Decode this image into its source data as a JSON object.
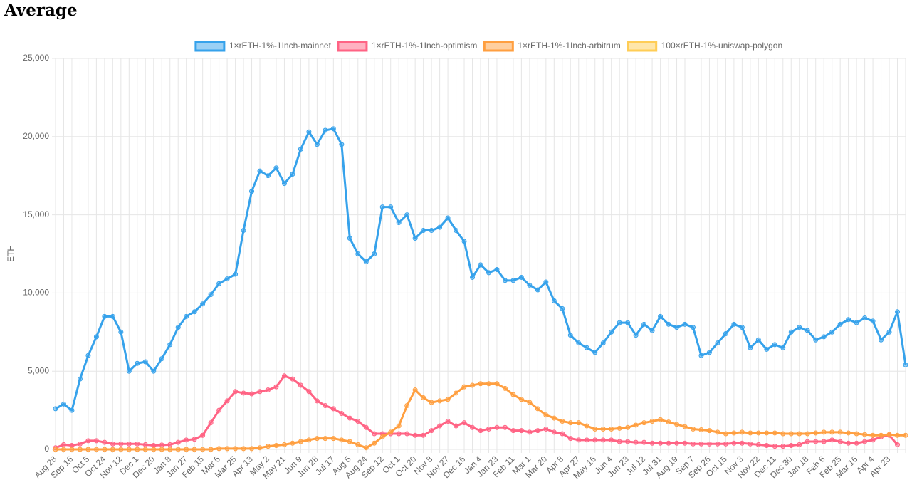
{
  "chart_data": {
    "type": "line",
    "title": "Average",
    "y_label": "ETH",
    "grid": true,
    "legend_position": "top",
    "categories": [
      "Aug 28",
      null,
      "Sep 16",
      null,
      "Oct 5",
      null,
      "Oct 24",
      null,
      "Nov 12",
      null,
      "Dec 1",
      null,
      "Dec 20",
      null,
      "Jan 8",
      null,
      "Jan 27",
      null,
      "Feb 15",
      null,
      "Mar 6",
      null,
      "Mar 25",
      null,
      "Apr 13",
      null,
      "May 2",
      null,
      "May 21",
      null,
      "Jun 9",
      null,
      "Jun 28",
      null,
      "Jul 17",
      null,
      "Aug 5",
      null,
      "Aug 24",
      null,
      "Sep 12",
      null,
      "Oct 1",
      null,
      "Oct 20",
      null,
      "Nov 8",
      null,
      "Nov 27",
      null,
      "Dec 16",
      null,
      "Jan 4",
      null,
      "Jan 23",
      null,
      "Feb 11",
      null,
      "Mar 1",
      null,
      "Mar 20",
      null,
      "Apr 8",
      null,
      "Apr 27",
      null,
      "May 16",
      null,
      "Jun 4",
      null,
      "Jun 23",
      null,
      "Jul 12",
      null,
      "Jul 31",
      null,
      "Aug 19",
      null,
      "Sep 7",
      null,
      "Sep 26",
      null,
      "Oct 15",
      null,
      "Nov 3",
      null,
      "Nov 22",
      null,
      "Dec 11",
      null,
      "Dec 30",
      null,
      "Jan 18",
      null,
      "Feb 6",
      null,
      "Feb 25",
      null,
      "Mar 16",
      null,
      "Apr 4",
      null,
      "Apr 23",
      null,
      null
    ],
    "ylim": [
      0,
      25000
    ],
    "yticks": [
      0,
      {
        "value": 5000,
        "label": "5,000"
      },
      {
        "value": 10000,
        "label": "10,000"
      },
      {
        "value": 15000,
        "label": "15,000"
      },
      {
        "value": 20000,
        "label": "20,000"
      },
      {
        "value": 25000,
        "label": "25,000"
      }
    ],
    "series": [
      {
        "name": "1×rETH-1%-1Inch-mainnet",
        "color": "#36a2eb",
        "values": [
          2600,
          2900,
          2500,
          4500,
          6000,
          7200,
          8500,
          8500,
          7500,
          5000,
          5500,
          5600,
          5000,
          5800,
          6700,
          7800,
          8500,
          8800,
          9300,
          9900,
          10600,
          10900,
          11200,
          14000,
          16500,
          17800,
          17500,
          18000,
          17000,
          17600,
          19200,
          20300,
          19500,
          20400,
          20500,
          19500,
          13500,
          12500,
          12000,
          12500,
          15500,
          15500,
          14500,
          15000,
          13500,
          14000,
          14000,
          14200,
          14800,
          14000,
          13300,
          11000,
          11800,
          11300,
          11500,
          10800,
          10800,
          11000,
          10500,
          10200,
          10700,
          9500,
          9000,
          7300,
          6800,
          6500,
          6200,
          6800,
          7500,
          8100,
          8100,
          7300,
          8000,
          7600,
          8500,
          8000,
          7800,
          8000,
          7800,
          6000,
          6200,
          6800,
          7400,
          8000,
          7800,
          6500,
          7000,
          6400,
          6700,
          6500,
          7500,
          7800,
          7600,
          7000,
          7200,
          7500,
          8000,
          8300,
          8100,
          8400,
          8200,
          7000,
          7500,
          8800,
          5400
        ]
      },
      {
        "name": "1×rETH-1%-1Inch-optimism",
        "color": "#ff6384",
        "values": [
          100,
          300,
          250,
          350,
          550,
          550,
          450,
          350,
          350,
          350,
          350,
          300,
          250,
          280,
          300,
          450,
          600,
          650,
          900,
          1700,
          2500,
          3100,
          3700,
          3600,
          3550,
          3700,
          3800,
          4000,
          4700,
          4500,
          4100,
          3700,
          3100,
          2800,
          2600,
          2300,
          2000,
          1800,
          1400,
          1000,
          1000,
          1000,
          1000,
          1000,
          900,
          900,
          1200,
          1500,
          1800,
          1500,
          1700,
          1400,
          1200,
          1300,
          1400,
          1400,
          1200,
          1200,
          1100,
          1200,
          1300,
          1100,
          1000,
          700,
          600,
          600,
          600,
          600,
          600,
          500,
          500,
          450,
          450,
          400,
          400,
          400,
          400,
          400,
          350,
          350,
          350,
          350,
          350,
          400,
          400,
          350,
          300,
          250,
          200,
          200,
          250,
          300,
          500,
          500,
          500,
          600,
          500,
          400,
          400,
          500,
          600,
          800,
          900,
          300,
          null
        ]
      },
      {
        "name": "1×rETH-1%-1Inch-arbitrum",
        "color": "#ff9f40",
        "values": [
          0,
          0,
          0,
          0,
          0,
          0,
          0,
          0,
          0,
          0,
          0,
          0,
          0,
          0,
          0,
          0,
          0,
          0,
          0,
          0,
          50,
          50,
          50,
          50,
          50,
          100,
          200,
          250,
          300,
          400,
          500,
          600,
          700,
          700,
          700,
          600,
          500,
          300,
          100,
          400,
          800,
          1100,
          1500,
          2800,
          3800,
          3300,
          3000,
          3100,
          3200,
          3600,
          4000,
          4100,
          4200,
          4200,
          4200,
          3900,
          3500,
          3200,
          3000,
          2600,
          2200,
          2000,
          1800,
          1700,
          1700,
          1500,
          1300,
          1300,
          1300,
          1350,
          1400,
          1550,
          1700,
          1800,
          1900,
          1750,
          1600,
          1450,
          1300,
          1250,
          1200,
          1100,
          1000,
          1050,
          1100,
          1050,
          1050,
          1050,
          1050,
          1000,
          1000,
          1000,
          1000,
          1050,
          1100,
          1100,
          1100,
          1050,
          1000,
          950,
          900,
          900,
          950,
          900,
          900
        ]
      },
      {
        "name": "100×rETH-1%-uniswap-polygon",
        "color": "#ffcd56",
        "values": [
          null,
          null,
          null,
          null,
          null,
          null,
          null,
          null,
          null,
          null,
          null,
          null,
          null,
          null,
          null,
          null,
          null,
          null,
          null,
          null,
          null,
          null,
          null,
          null,
          null,
          null,
          null,
          null,
          null,
          null,
          null,
          null,
          null,
          null,
          null,
          null,
          null,
          null,
          null,
          null,
          null,
          null,
          null,
          null,
          null,
          null,
          null,
          null,
          null,
          null,
          null,
          null,
          null,
          null,
          null,
          null,
          null,
          null,
          null,
          null,
          null,
          null,
          null,
          null,
          null,
          null,
          null,
          null,
          null,
          null,
          null,
          null,
          null,
          null,
          null,
          null,
          null,
          null,
          null,
          null,
          null,
          null,
          null,
          null,
          null,
          null,
          null,
          null,
          null,
          null,
          null,
          null,
          null,
          null,
          null,
          null,
          null,
          null,
          null,
          null,
          null,
          null,
          null,
          null,
          null
        ]
      }
    ]
  }
}
